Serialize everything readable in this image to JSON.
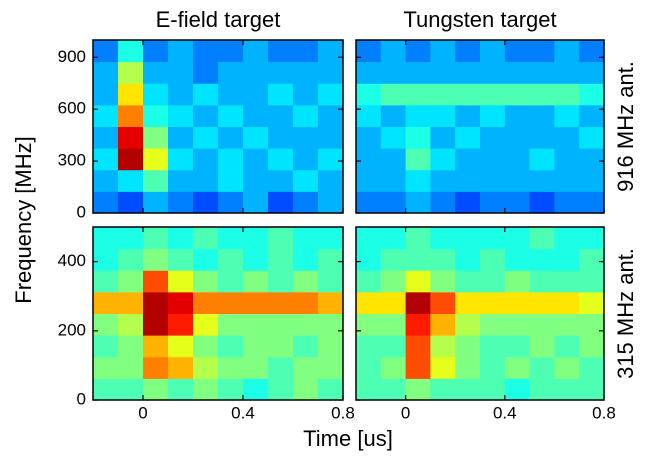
{
  "figure": {
    "xlabel": "Time [us]",
    "ylabel": "Frequency [MHz]"
  },
  "chart_data": [
    {
      "type": "heatmap",
      "title": "E-field target",
      "xlim": [
        -0.2,
        0.8
      ],
      "ylim": [
        0,
        1000
      ],
      "yticks": [
        0,
        300,
        600,
        900
      ],
      "z": [
        [
          0.25,
          0.2,
          0.3,
          0.25,
          0.2,
          0.25,
          0.3,
          0.2,
          0.25,
          0.3
        ],
        [
          0.3,
          0.35,
          0.45,
          0.3,
          0.3,
          0.35,
          0.3,
          0.3,
          0.35,
          0.3
        ],
        [
          0.35,
          0.95,
          0.6,
          0.35,
          0.3,
          0.35,
          0.3,
          0.35,
          0.3,
          0.35
        ],
        [
          0.3,
          0.9,
          0.5,
          0.3,
          0.35,
          0.3,
          0.35,
          0.3,
          0.3,
          0.3
        ],
        [
          0.35,
          0.75,
          0.4,
          0.35,
          0.3,
          0.35,
          0.3,
          0.3,
          0.35,
          0.3
        ],
        [
          0.3,
          0.65,
          0.35,
          0.3,
          0.35,
          0.3,
          0.3,
          0.35,
          0.3,
          0.35
        ],
        [
          0.3,
          0.55,
          0.3,
          0.3,
          0.25,
          0.3,
          0.3,
          0.3,
          0.3,
          0.3
        ],
        [
          0.25,
          0.4,
          0.25,
          0.3,
          0.25,
          0.25,
          0.3,
          0.25,
          0.25,
          0.3
        ]
      ]
    },
    {
      "type": "heatmap",
      "title": "Tungsten target",
      "side_label": "916 MHz ant.",
      "xlim": [
        -0.2,
        0.8
      ],
      "ylim": [
        0,
        1000
      ],
      "z": [
        [
          0.25,
          0.25,
          0.3,
          0.25,
          0.2,
          0.25,
          0.25,
          0.2,
          0.25,
          0.25
        ],
        [
          0.3,
          0.3,
          0.35,
          0.3,
          0.3,
          0.3,
          0.3,
          0.3,
          0.3,
          0.3
        ],
        [
          0.3,
          0.3,
          0.45,
          0.35,
          0.3,
          0.3,
          0.3,
          0.35,
          0.3,
          0.3
        ],
        [
          0.3,
          0.35,
          0.4,
          0.3,
          0.35,
          0.3,
          0.3,
          0.3,
          0.3,
          0.35
        ],
        [
          0.35,
          0.3,
          0.35,
          0.35,
          0.3,
          0.35,
          0.3,
          0.3,
          0.35,
          0.3
        ],
        [
          0.4,
          0.45,
          0.45,
          0.45,
          0.45,
          0.45,
          0.45,
          0.45,
          0.45,
          0.4
        ],
        [
          0.3,
          0.3,
          0.3,
          0.3,
          0.3,
          0.3,
          0.3,
          0.3,
          0.3,
          0.3
        ],
        [
          0.25,
          0.3,
          0.25,
          0.3,
          0.25,
          0.3,
          0.25,
          0.25,
          0.3,
          0.25
        ]
      ]
    },
    {
      "type": "heatmap",
      "xlim": [
        -0.2,
        0.8
      ],
      "ylim": [
        0,
        500
      ],
      "xticks": [
        0,
        0.4,
        0.8
      ],
      "yticks": [
        0,
        200,
        400
      ],
      "z": [
        [
          0.45,
          0.45,
          0.5,
          0.45,
          0.5,
          0.45,
          0.4,
          0.45,
          0.5,
          0.45
        ],
        [
          0.5,
          0.5,
          0.75,
          0.7,
          0.55,
          0.5,
          0.5,
          0.45,
          0.5,
          0.5
        ],
        [
          0.45,
          0.5,
          0.7,
          0.6,
          0.5,
          0.45,
          0.5,
          0.5,
          0.45,
          0.5
        ],
        [
          0.5,
          0.55,
          0.95,
          0.85,
          0.6,
          0.5,
          0.5,
          0.5,
          0.5,
          0.5
        ],
        [
          0.7,
          0.7,
          0.95,
          0.9,
          0.75,
          0.75,
          0.75,
          0.75,
          0.75,
          0.7
        ],
        [
          0.45,
          0.5,
          0.8,
          0.6,
          0.5,
          0.45,
          0.5,
          0.45,
          0.5,
          0.45
        ],
        [
          0.4,
          0.45,
          0.5,
          0.45,
          0.4,
          0.45,
          0.4,
          0.45,
          0.4,
          0.45
        ],
        [
          0.4,
          0.4,
          0.45,
          0.4,
          0.45,
          0.4,
          0.4,
          0.45,
          0.4,
          0.4
        ]
      ]
    },
    {
      "type": "heatmap",
      "side_label": "315 MHz ant.",
      "xlim": [
        -0.2,
        0.8
      ],
      "ylim": [
        0,
        500
      ],
      "xticks": [
        0,
        0.4,
        0.8
      ],
      "z": [
        [
          0.45,
          0.45,
          0.5,
          0.45,
          0.45,
          0.45,
          0.4,
          0.45,
          0.45,
          0.45
        ],
        [
          0.45,
          0.5,
          0.8,
          0.6,
          0.5,
          0.45,
          0.5,
          0.45,
          0.5,
          0.45
        ],
        [
          0.45,
          0.45,
          0.8,
          0.55,
          0.5,
          0.45,
          0.45,
          0.5,
          0.45,
          0.5
        ],
        [
          0.5,
          0.5,
          0.85,
          0.7,
          0.55,
          0.5,
          0.5,
          0.5,
          0.5,
          0.5
        ],
        [
          0.65,
          0.65,
          0.95,
          0.8,
          0.65,
          0.65,
          0.65,
          0.65,
          0.65,
          0.6
        ],
        [
          0.45,
          0.5,
          0.6,
          0.5,
          0.45,
          0.45,
          0.5,
          0.45,
          0.45,
          0.45
        ],
        [
          0.4,
          0.45,
          0.45,
          0.45,
          0.4,
          0.45,
          0.4,
          0.4,
          0.4,
          0.45
        ],
        [
          0.4,
          0.4,
          0.45,
          0.4,
          0.4,
          0.4,
          0.4,
          0.45,
          0.4,
          0.4
        ]
      ]
    }
  ]
}
